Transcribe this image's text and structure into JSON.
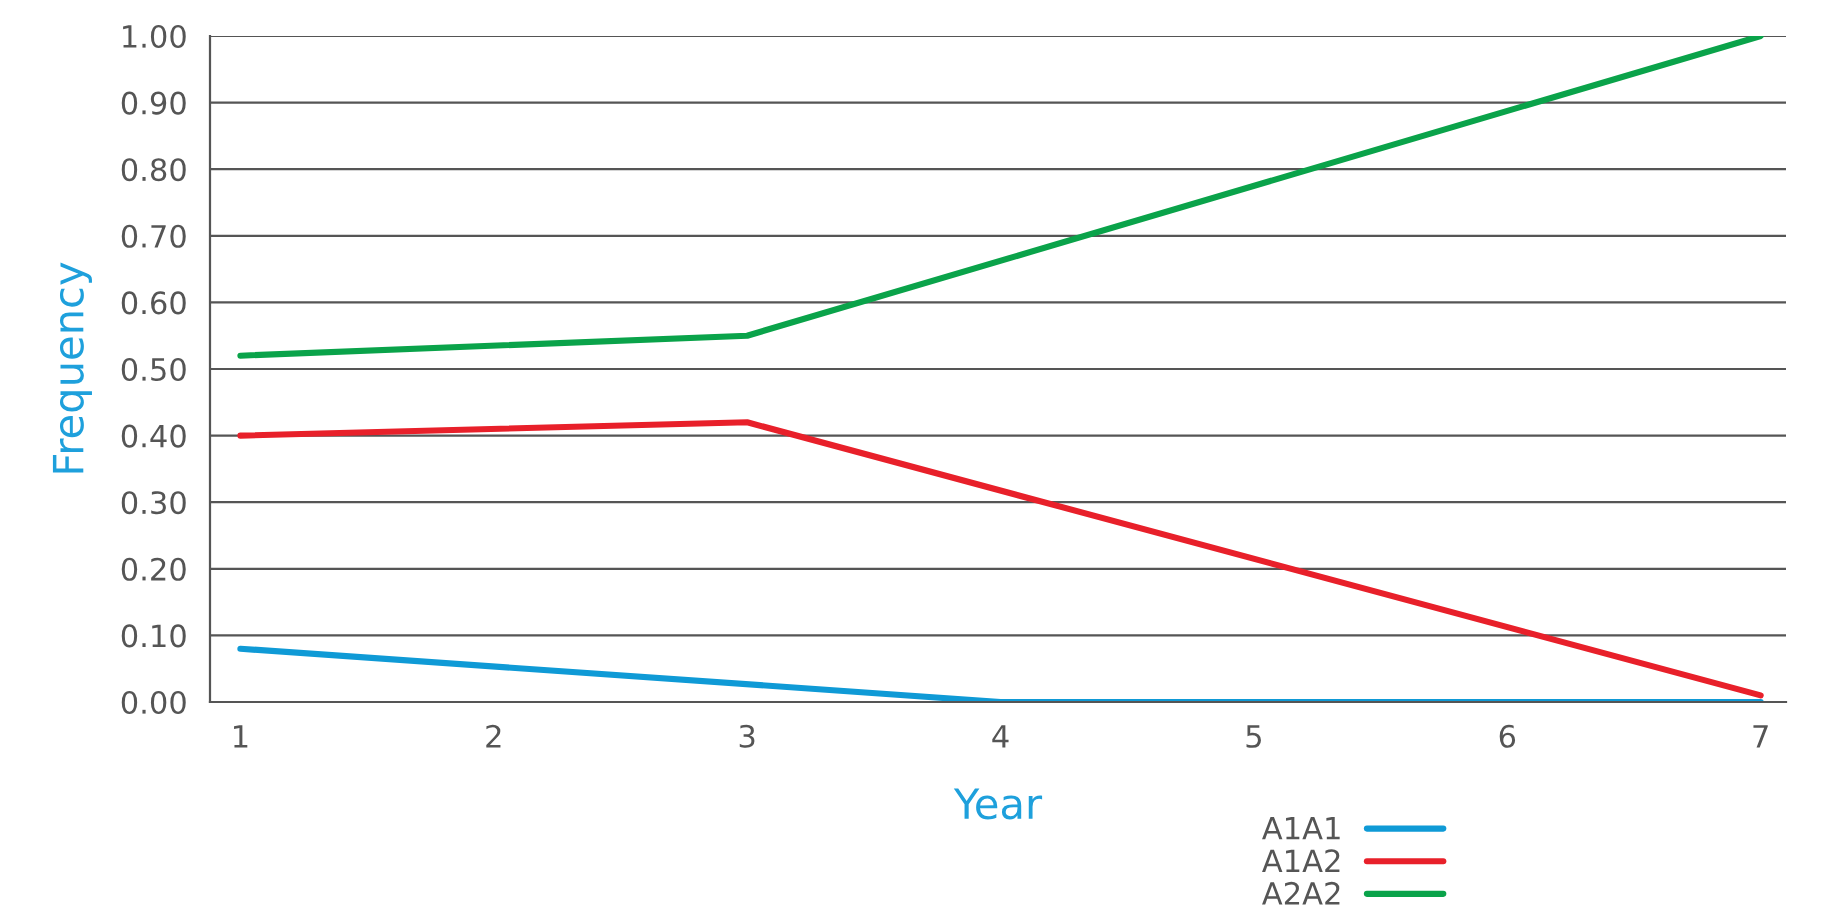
{
  "chart_data": {
    "type": "line",
    "xlabel": "Year",
    "ylabel": "Frequency",
    "xlim": [
      0.88,
      7.1
    ],
    "xticks": [
      1,
      2,
      3,
      4,
      5,
      6,
      7
    ],
    "ylim": [
      0,
      1
    ],
    "yticks": [
      {
        "value": 0,
        "label": "0.00"
      },
      {
        "value": 0.1,
        "label": "0.10"
      },
      {
        "value": 0.2,
        "label": "0.20"
      },
      {
        "value": 0.3,
        "label": "0.30"
      },
      {
        "value": 0.4,
        "label": "0.40"
      },
      {
        "value": 0.5,
        "label": "0.50"
      },
      {
        "value": 0.6,
        "label": "0.60"
      },
      {
        "value": 0.7,
        "label": "0.70"
      },
      {
        "value": 0.8,
        "label": "0.80"
      },
      {
        "value": 0.9,
        "label": "0.90"
      },
      {
        "value": 1,
        "label": "1.00"
      }
    ],
    "grid": "y",
    "legend": "bottom right",
    "series": [
      {
        "name": "A1A1",
        "color": "#0f9ad6",
        "x": [
          1,
          4,
          7
        ],
        "values": [
          0.08,
          0,
          0
        ]
      },
      {
        "name": "A1A2",
        "color": "#e8202a",
        "x": [
          1,
          3,
          7
        ],
        "values": [
          0.4,
          0.42,
          0.01
        ]
      },
      {
        "name": "A2A2",
        "color": "#0aa34a",
        "x": [
          1,
          3,
          7
        ],
        "values": [
          0.52,
          0.55,
          1.0
        ]
      }
    ]
  }
}
